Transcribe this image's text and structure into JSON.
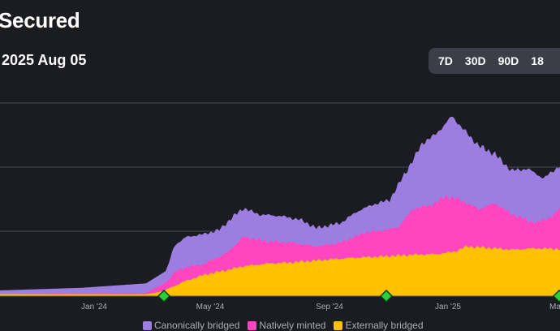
{
  "header": {
    "title": "Secured",
    "date_range": "2025 Aug 05"
  },
  "range_buttons": [
    "7D",
    "30D",
    "90D",
    "18"
  ],
  "legend": [
    {
      "label": "Canonically bridged",
      "color": "#9c7ee0"
    },
    {
      "label": "Natively minted",
      "color": "#ff46c0"
    },
    {
      "label": "Externally bridged",
      "color": "#ffc100"
    }
  ],
  "chart_data": {
    "type": "area",
    "stacked": true,
    "x_ticks": [
      "Jan '24",
      "May '24",
      "Sep '24",
      "Jan '25",
      "Ma"
    ],
    "grid": true,
    "series": [
      {
        "name": "Externally bridged",
        "color": "#ffc100",
        "values": [
          [
            0,
            0.3
          ],
          [
            180,
            0.3
          ],
          [
            195,
            0.6
          ],
          [
            205,
            1.0
          ],
          [
            215,
            1.6
          ],
          [
            225,
            2.2
          ],
          [
            250,
            3.3
          ],
          [
            280,
            4.1
          ],
          [
            300,
            4.7
          ],
          [
            330,
            5.1
          ],
          [
            360,
            5.3
          ],
          [
            390,
            5.6
          ],
          [
            420,
            5.9
          ],
          [
            450,
            6.1
          ],
          [
            480,
            6.3
          ],
          [
            510,
            6.5
          ],
          [
            540,
            6.6
          ],
          [
            560,
            7.0
          ],
          [
            575,
            7.8
          ],
          [
            600,
            7.6
          ],
          [
            630,
            7.3
          ],
          [
            660,
            7.5
          ],
          [
            690,
            7.4
          ]
        ]
      },
      {
        "name": "Natively minted",
        "color": "#ff46c0",
        "values": [
          [
            0,
            0.3
          ],
          [
            180,
            0.5
          ],
          [
            205,
            2.2
          ],
          [
            215,
            3.8
          ],
          [
            230,
            4.6
          ],
          [
            250,
            5.0
          ],
          [
            280,
            6.8
          ],
          [
            300,
            9.3
          ],
          [
            330,
            8.6
          ],
          [
            360,
            8.4
          ],
          [
            390,
            7.8
          ],
          [
            420,
            8.4
          ],
          [
            450,
            10.0
          ],
          [
            470,
            10.3
          ],
          [
            490,
            10.8
          ],
          [
            510,
            13.8
          ],
          [
            530,
            14.2
          ],
          [
            550,
            15.7
          ],
          [
            565,
            15.2
          ],
          [
            590,
            13.7
          ],
          [
            610,
            14.6
          ],
          [
            630,
            12.9
          ],
          [
            660,
            11.5
          ],
          [
            680,
            12.5
          ],
          [
            690,
            13.8
          ]
        ]
      },
      {
        "name": "Canonically bridged",
        "color": "#9c7ee0",
        "values": [
          [
            0,
            0.9
          ],
          [
            100,
            1.3
          ],
          [
            180,
            2.0
          ],
          [
            205,
            4.0
          ],
          [
            215,
            8.0
          ],
          [
            230,
            9.3
          ],
          [
            250,
            9.7
          ],
          [
            270,
            10.4
          ],
          [
            290,
            12.8
          ],
          [
            300,
            13.8
          ],
          [
            320,
            12.8
          ],
          [
            345,
            12.6
          ],
          [
            370,
            12.0
          ],
          [
            390,
            10.7
          ],
          [
            420,
            11.5
          ],
          [
            440,
            13.3
          ],
          [
            460,
            14.4
          ],
          [
            480,
            15.1
          ],
          [
            495,
            18.4
          ],
          [
            510,
            21.6
          ],
          [
            520,
            24.0
          ],
          [
            535,
            25.2
          ],
          [
            550,
            27.2
          ],
          [
            557,
            28.3
          ],
          [
            570,
            26.3
          ],
          [
            590,
            23.6
          ],
          [
            610,
            22.3
          ],
          [
            630,
            19.7
          ],
          [
            650,
            20.0
          ],
          [
            670,
            18.5
          ],
          [
            690,
            20.5
          ]
        ]
      }
    ],
    "y_range": [
      0,
      30
    ],
    "markers_x": [
      202,
      476,
      689
    ]
  }
}
